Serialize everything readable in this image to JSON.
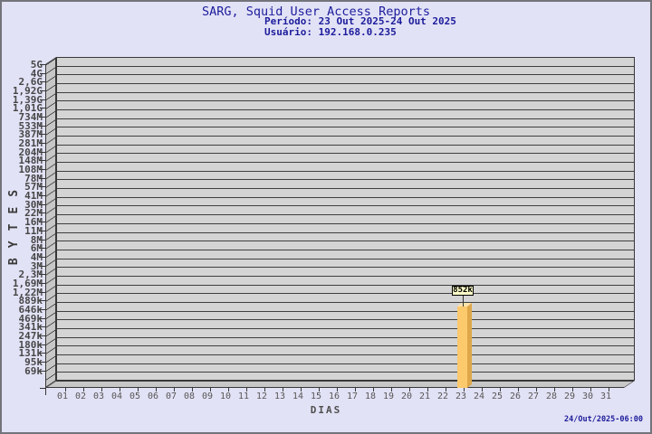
{
  "header": {
    "title": "SARG, Squid User Access Reports",
    "period": "Período: 23 Out 2025-24 Out 2025",
    "user": "Usuário: 192.168.0.235",
    "text_color": "#1C1C9C"
  },
  "footer": {
    "timestamp": "24/Out/2025-06:00"
  },
  "chart_data": {
    "type": "bar",
    "title": "SARG, Squid User Access Reports",
    "subtitle_period": "Período: 23 Out 2025-24 Out 2025",
    "subtitle_user": "Usuário: 192.168.0.235",
    "xlabel": "DIAS",
    "ylabel": "BYTES",
    "y_axis": {
      "scale": "log",
      "tick_labels": [
        "5G",
        "4G",
        "2,6G",
        "1,92G",
        "1,39G",
        "1,01G",
        "734M",
        "533M",
        "387M",
        "281M",
        "204M",
        "148M",
        "108M",
        "78M",
        "57M",
        "41M",
        "30M",
        "22M",
        "16M",
        "11M",
        "8M",
        "6M",
        "4M",
        "3M",
        "2,3M",
        "1,69M",
        "1,22M",
        "889k",
        "646k",
        "469k",
        "341k",
        "247k",
        "180k",
        "131k",
        "95k",
        "69k"
      ],
      "ylim_bytes": [
        36500,
        5000000000
      ]
    },
    "x_axis": {
      "tick_labels": [
        "01",
        "02",
        "03",
        "04",
        "05",
        "06",
        "07",
        "08",
        "09",
        "10",
        "11",
        "12",
        "13",
        "14",
        "15",
        "16",
        "17",
        "18",
        "19",
        "20",
        "21",
        "22",
        "23",
        "24",
        "25",
        "26",
        "27",
        "28",
        "29",
        "30",
        "31"
      ]
    },
    "series": [
      {
        "name": "bytes-per-day",
        "points": [
          {
            "x": "23",
            "value_label": "852k",
            "value_bytes": 852000
          }
        ]
      }
    ],
    "legend": "none",
    "grid": "on",
    "colors": {
      "bar_front": "#FCC96C",
      "bar_side": "#DEA74A",
      "bar_top": "#FFE3AC",
      "value_tag_bg": "#FFFFC9",
      "plot_bg": "#D4D4D4",
      "wall_bg": "#C7C7C7",
      "grid_line": "#3f3f3f",
      "title_color": "#1C1C9C"
    }
  }
}
